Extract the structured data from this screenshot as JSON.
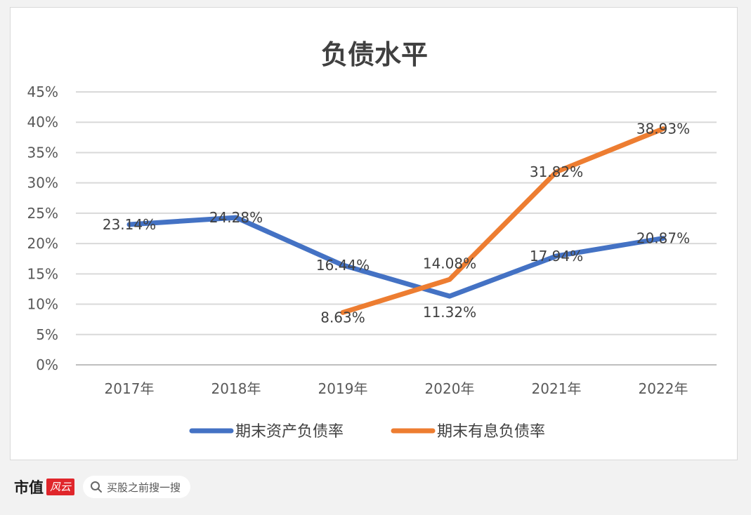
{
  "chart_data": {
    "type": "line",
    "title": "负债水平",
    "categories": [
      "2017年",
      "2018年",
      "2019年",
      "2020年",
      "2021年",
      "2022年"
    ],
    "ylim": [
      0,
      45
    ],
    "yticks": [
      "0%",
      "5%",
      "10%",
      "15%",
      "20%",
      "25%",
      "30%",
      "35%",
      "40%",
      "45%"
    ],
    "grid": true,
    "legend_position": "bottom",
    "series": [
      {
        "name": "期末资产负债率",
        "color": "#4472c4",
        "values": [
          23.14,
          24.28,
          16.44,
          11.32,
          17.94,
          20.87
        ],
        "labels": [
          "23.14%",
          "24.28%",
          "16.44%",
          "11.32%",
          "17.94%",
          "20.87%"
        ]
      },
      {
        "name": "期末有息负债率",
        "color": "#ed7d31",
        "values": [
          null,
          null,
          8.63,
          14.08,
          31.82,
          38.93
        ],
        "labels": [
          "",
          "",
          "8.63%",
          "14.08%",
          "31.82%",
          "38.93%"
        ]
      }
    ]
  },
  "footer": {
    "brand": "市值",
    "brand_mark": "风云",
    "search_icon": "search-icon",
    "search_text": "买股之前搜一搜"
  }
}
